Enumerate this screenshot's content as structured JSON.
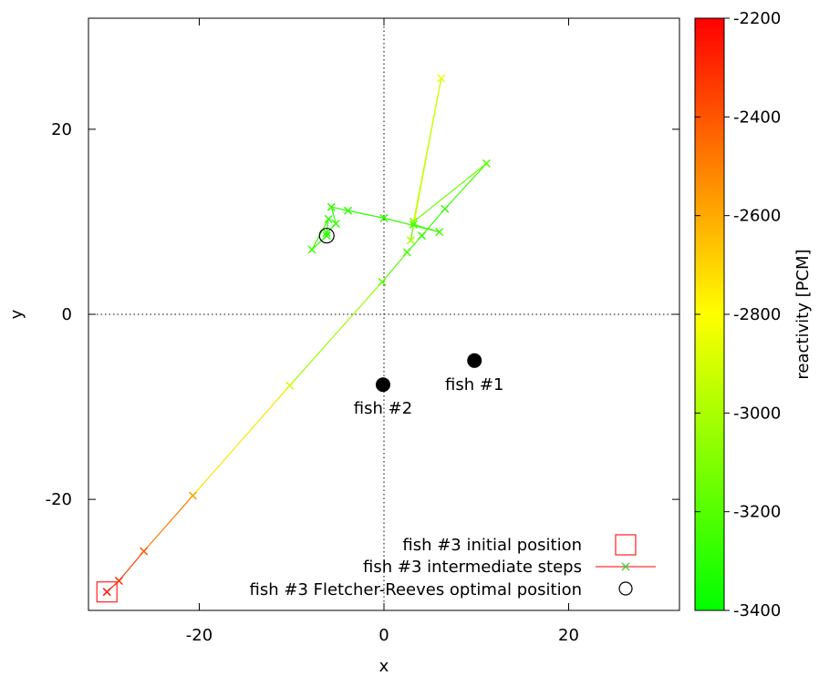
{
  "chart_data": {
    "type": "scatter",
    "xlabel": "x",
    "ylabel": "y",
    "xlim": [
      -32,
      32
    ],
    "ylim": [
      -32,
      32
    ],
    "xticks": [
      -20,
      0,
      20
    ],
    "yticks": [
      -20,
      0,
      20
    ],
    "zero_lines": "dotted",
    "colorbar": {
      "label": "reactivity [PCM]",
      "range": [
        -3400,
        -2200
      ],
      "ticks": [
        -2200,
        -2400,
        -2600,
        -2800,
        -3000,
        -3200,
        -3400
      ],
      "colors": {
        "low": "#00ff00",
        "mid": "#ffff00",
        "high": "#ff0000"
      }
    },
    "fixed_points": [
      {
        "label": "fish #1",
        "x": 9.8,
        "y": -5.0
      },
      {
        "label": "fish #2",
        "x": -0.1,
        "y": -7.6
      }
    ],
    "path": {
      "name": "fish #3 intermediate steps",
      "points": [
        {
          "x": -30.0,
          "y": -30.0,
          "r": -2250
        },
        {
          "x": -28.7,
          "y": -28.8,
          "r": -2300
        },
        {
          "x": -26.0,
          "y": -25.6,
          "r": -2400
        },
        {
          "x": -20.7,
          "y": -19.6,
          "r": -2580
        },
        {
          "x": -10.2,
          "y": -7.7,
          "r": -2900
        },
        {
          "x": -0.2,
          "y": 3.5,
          "r": -3180
        },
        {
          "x": 2.5,
          "y": 6.7,
          "r": -3240
        },
        {
          "x": 4.1,
          "y": 8.5,
          "r": -3260
        },
        {
          "x": 6.6,
          "y": 11.4,
          "r": -3280
        },
        {
          "x": 11.1,
          "y": 16.3,
          "r": -3200
        },
        {
          "x": 3.2,
          "y": 10.0,
          "r": -3100
        },
        {
          "x": 6.2,
          "y": 25.5,
          "r": -2850
        },
        {
          "x": 2.9,
          "y": 8.0,
          "r": -3000
        },
        {
          "x": 3.2,
          "y": 9.7,
          "r": -3250
        },
        {
          "x": 6.0,
          "y": 8.9,
          "r": -3250
        },
        {
          "x": 0.0,
          "y": 10.4,
          "r": -3300
        },
        {
          "x": -3.9,
          "y": 11.2,
          "r": -3300
        },
        {
          "x": -5.7,
          "y": 11.6,
          "r": -3280
        },
        {
          "x": -5.2,
          "y": 9.8,
          "r": -3280
        },
        {
          "x": -6.2,
          "y": 8.8,
          "r": -3300
        },
        {
          "x": -6.0,
          "y": 10.3,
          "r": -3280
        },
        {
          "x": -7.8,
          "y": 7.0,
          "r": -3260
        },
        {
          "x": -6.2,
          "y": 8.5,
          "r": -3300
        }
      ]
    },
    "initial_position": {
      "x": -30.0,
      "y": -30.0
    },
    "optimal_position": {
      "x": -6.2,
      "y": 8.5
    },
    "legend": {
      "placement": "bottom-right",
      "entries": [
        "fish #3 initial position",
        "fish #3 intermediate steps",
        "fish #3 Fletcher-Reeves optimal position"
      ]
    }
  }
}
